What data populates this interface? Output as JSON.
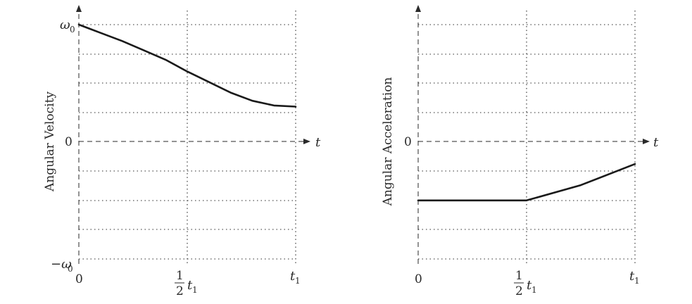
{
  "chart_data": [
    {
      "type": "line",
      "ylabel": "Angular Velocity",
      "xlabel": "t",
      "x_tick_labels": [
        "0",
        "1",
        "2",
        "t",
        "1"
      ],
      "y_tick_labels": [
        "ω",
        "0",
        "0",
        "−ω",
        "0"
      ],
      "x": [
        0,
        0.1,
        0.2,
        0.3,
        0.4,
        0.5,
        0.6,
        0.7,
        0.8,
        0.9,
        1.0
      ],
      "series": [
        {
          "values": [
            1.0,
            0.93,
            0.86,
            0.78,
            0.7,
            0.6,
            0.51,
            0.42,
            0.35,
            0.31,
            0.3
          ]
        }
      ],
      "ylim": [
        -1,
        1
      ],
      "xlim": [
        0,
        1
      ],
      "grid": true
    },
    {
      "type": "line",
      "ylabel": "Angular Acceleration",
      "xlabel": "t",
      "x_tick_labels": [
        "0",
        "1",
        "2",
        "t",
        "1"
      ],
      "y_tick_labels": [
        "0"
      ],
      "x": [
        0,
        0.25,
        0.5,
        0.75,
        1.0
      ],
      "series": [
        {
          "values": [
            -0.5,
            -0.5,
            -0.5,
            -0.37,
            -0.19
          ]
        }
      ],
      "ylim": [
        -1,
        1
      ],
      "xlim": [
        0,
        1
      ],
      "grid": true
    }
  ]
}
